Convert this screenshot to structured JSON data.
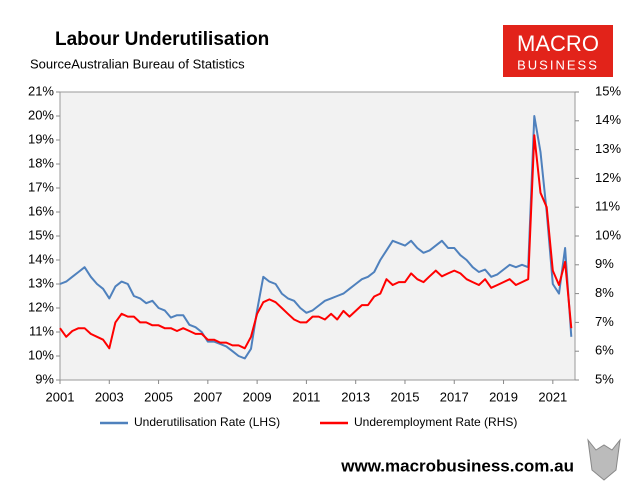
{
  "chart_data": {
    "type": "line",
    "title": "Labour Underutilisation",
    "subtitle": "SourceAustralian Bureau of Statistics",
    "logo": [
      "MACRO",
      "BUSINESS"
    ],
    "footer": "www.macrobusiness.com.au",
    "x": [
      2001,
      2001.25,
      2001.5,
      2001.75,
      2002,
      2002.25,
      2002.5,
      2002.75,
      2003,
      2003.25,
      2003.5,
      2003.75,
      2004,
      2004.25,
      2004.5,
      2004.75,
      2005,
      2005.25,
      2005.5,
      2005.75,
      2006,
      2006.25,
      2006.5,
      2006.75,
      2007,
      2007.25,
      2007.5,
      2007.75,
      2008,
      2008.25,
      2008.5,
      2008.75,
      2009,
      2009.25,
      2009.5,
      2009.75,
      2010,
      2010.25,
      2010.5,
      2010.75,
      2011,
      2011.25,
      2011.5,
      2011.75,
      2012,
      2012.25,
      2012.5,
      2012.75,
      2013,
      2013.25,
      2013.5,
      2013.75,
      2014,
      2014.25,
      2014.5,
      2014.75,
      2015,
      2015.25,
      2015.5,
      2015.75,
      2016,
      2016.25,
      2016.5,
      2016.75,
      2017,
      2017.25,
      2017.5,
      2017.75,
      2018,
      2018.25,
      2018.5,
      2018.75,
      2019,
      2019.25,
      2019.5,
      2019.75,
      2020,
      2020.25,
      2020.5,
      2020.75,
      2021,
      2021.25,
      2021.5,
      2021.75
    ],
    "xlim": [
      2001,
      2021.9
    ],
    "xticks": [
      2001,
      2003,
      2005,
      2007,
      2009,
      2011,
      2013,
      2015,
      2017,
      2019,
      2021
    ],
    "ylim": [
      9,
      21
    ],
    "yticks": [
      {
        "value": 9,
        "label": "9%"
      },
      {
        "value": 10,
        "label": "10%"
      },
      {
        "value": 11,
        "label": "11%"
      },
      {
        "value": 12,
        "label": "12%"
      },
      {
        "value": 13,
        "label": "13%"
      },
      {
        "value": 14,
        "label": "14%"
      },
      {
        "value": 15,
        "label": "15%"
      },
      {
        "value": 16,
        "label": "16%"
      },
      {
        "value": 17,
        "label": "17%"
      },
      {
        "value": 18,
        "label": "18%"
      },
      {
        "value": 19,
        "label": "19%"
      },
      {
        "value": 20,
        "label": "20%"
      },
      {
        "value": 21,
        "label": "21%"
      }
    ],
    "y2lim": [
      5,
      15
    ],
    "y2ticks": [
      {
        "value": 5,
        "label": "5%"
      },
      {
        "value": 6,
        "label": "6%"
      },
      {
        "value": 7,
        "label": "7%"
      },
      {
        "value": 8,
        "label": "8%"
      },
      {
        "value": 9,
        "label": "9%"
      },
      {
        "value": 10,
        "label": "10%"
      },
      {
        "value": 11,
        "label": "11%"
      },
      {
        "value": 12,
        "label": "12%"
      },
      {
        "value": 13,
        "label": "13%"
      },
      {
        "value": 14,
        "label": "14%"
      },
      {
        "value": 15,
        "label": "15%"
      }
    ],
    "series": [
      {
        "name": "Underutilisation Rate (LHS)",
        "color": "#4f81bd",
        "axis": "y",
        "values": [
          13.0,
          13.1,
          13.3,
          13.5,
          13.7,
          13.3,
          13.0,
          12.8,
          12.4,
          12.9,
          13.1,
          13.0,
          12.5,
          12.4,
          12.2,
          12.3,
          12.0,
          11.9,
          11.6,
          11.7,
          11.7,
          11.3,
          11.2,
          11.0,
          10.6,
          10.6,
          10.5,
          10.4,
          10.2,
          10.0,
          9.9,
          10.3,
          11.9,
          13.3,
          13.1,
          13.0,
          12.6,
          12.4,
          12.3,
          12.0,
          11.8,
          11.9,
          12.1,
          12.3,
          12.4,
          12.5,
          12.6,
          12.8,
          13.0,
          13.2,
          13.3,
          13.5,
          14.0,
          14.4,
          14.8,
          14.7,
          14.6,
          14.8,
          14.5,
          14.3,
          14.4,
          14.6,
          14.8,
          14.5,
          14.5,
          14.2,
          14.0,
          13.7,
          13.5,
          13.6,
          13.3,
          13.4,
          13.6,
          13.8,
          13.7,
          13.8,
          13.7,
          20.0,
          18.5,
          16.0,
          13.0,
          12.6,
          14.5,
          10.8
        ]
      },
      {
        "name": "Underemployment Rate (RHS)",
        "color": "#ff0000",
        "axis": "y2",
        "values": [
          6.8,
          6.5,
          6.7,
          6.8,
          6.8,
          6.6,
          6.5,
          6.4,
          6.1,
          7.0,
          7.3,
          7.2,
          7.2,
          7.0,
          7.0,
          6.9,
          6.9,
          6.8,
          6.8,
          6.7,
          6.8,
          6.7,
          6.6,
          6.6,
          6.4,
          6.4,
          6.3,
          6.3,
          6.2,
          6.2,
          6.1,
          6.5,
          7.3,
          7.7,
          7.8,
          7.7,
          7.5,
          7.3,
          7.1,
          7.0,
          7.0,
          7.2,
          7.2,
          7.1,
          7.3,
          7.1,
          7.4,
          7.2,
          7.4,
          7.6,
          7.6,
          7.9,
          8.0,
          8.5,
          8.3,
          8.4,
          8.4,
          8.7,
          8.5,
          8.4,
          8.6,
          8.8,
          8.6,
          8.7,
          8.8,
          8.7,
          8.5,
          8.4,
          8.3,
          8.5,
          8.2,
          8.3,
          8.4,
          8.5,
          8.3,
          8.4,
          8.5,
          13.5,
          11.5,
          11.0,
          8.8,
          8.3,
          9.1,
          6.8
        ]
      }
    ]
  }
}
